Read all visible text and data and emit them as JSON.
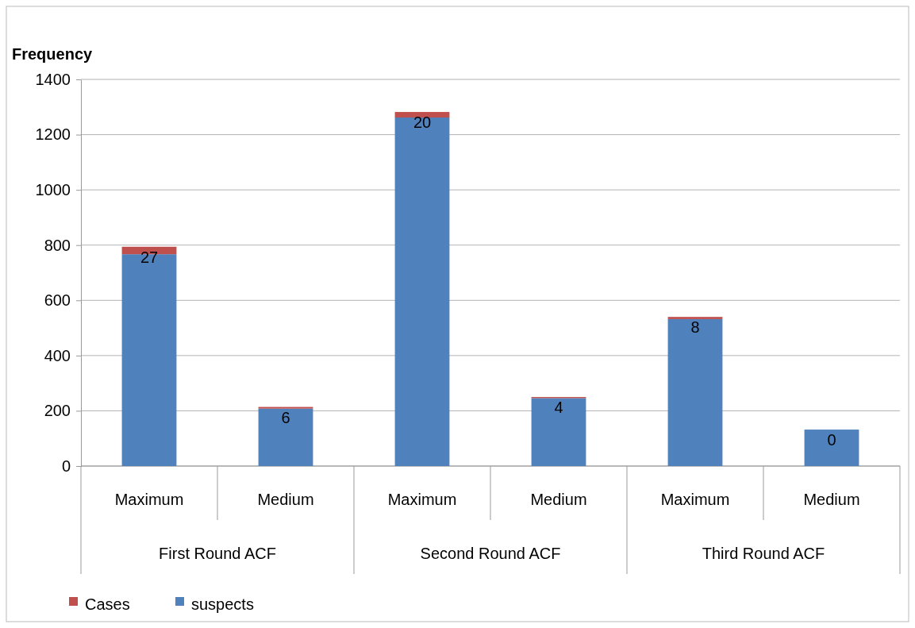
{
  "chart_data": {
    "type": "bar",
    "stacked": true,
    "ylabel": "Frequency",
    "categories": [
      "Maximum",
      "Medium",
      "Maximum",
      "Medium",
      "Maximum",
      "Medium"
    ],
    "series": [
      {
        "name": "suspects",
        "color": "#4f81bd",
        "values": [
          767,
          208,
          1262,
          246,
          532,
          132
        ]
      },
      {
        "name": "Cases",
        "color": "#c0504d",
        "values": [
          27,
          6,
          20,
          4,
          8,
          0
        ],
        "value_labels": [
          "27",
          "6",
          "20",
          "4",
          "8",
          "0"
        ]
      }
    ],
    "ylim": [
      0,
      1400
    ],
    "yticks": [
      0,
      200,
      400,
      600,
      800,
      1000,
      1200,
      1400
    ],
    "grid": "y",
    "legend": "bottom left",
    "annotations": [
      "First Round ACF",
      "Second Round ACF",
      "Third Round ACF"
    ]
  }
}
